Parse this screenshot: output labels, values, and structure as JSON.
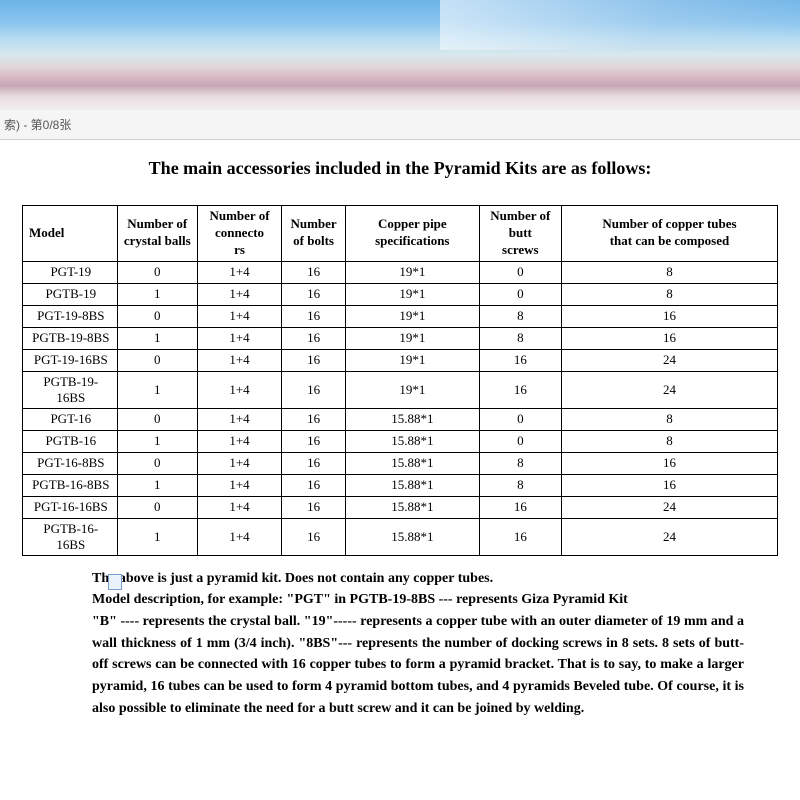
{
  "toolbar_text": "索) - 第0/8张",
  "title": "The main accessories included in the Pyramid Kits are as follows:",
  "table": {
    "columns": [
      "Model",
      "Number of crystal balls",
      "Number of connectors",
      "Number of bolts",
      "Copper pipe specifications",
      "Number of butt screws",
      "Number of copper tubes that can be composed"
    ],
    "rows": [
      [
        "PGT-19",
        "0",
        "1+4",
        "16",
        "19*1",
        "0",
        "8"
      ],
      [
        "PGTB-19",
        "1",
        "1+4",
        "16",
        "19*1",
        "0",
        "8"
      ],
      [
        "PGT-19-8BS",
        "0",
        "1+4",
        "16",
        "19*1",
        "8",
        "16"
      ],
      [
        "PGTB-19-8BS",
        "1",
        "1+4",
        "16",
        "19*1",
        "8",
        "16"
      ],
      [
        "PGT-19-16BS",
        "0",
        "1+4",
        "16",
        "19*1",
        "16",
        "24"
      ],
      [
        "PGTB-19-16BS",
        "1",
        "1+4",
        "16",
        "19*1",
        "16",
        "24"
      ],
      [
        "PGT-16",
        "0",
        "1+4",
        "16",
        "15.88*1",
        "0",
        "8"
      ],
      [
        "PGTB-16",
        "1",
        "1+4",
        "16",
        "15.88*1",
        "0",
        "8"
      ],
      [
        "PGT-16-8BS",
        "0",
        "1+4",
        "16",
        "15.88*1",
        "8",
        "16"
      ],
      [
        "PGTB-16-8BS",
        "1",
        "1+4",
        "16",
        "15.88*1",
        "8",
        "16"
      ],
      [
        "PGT-16-16BS",
        "0",
        "1+4",
        "16",
        "15.88*1",
        "16",
        "24"
      ],
      [
        "PGTB-16-16BS",
        "1",
        "1+4",
        "16",
        "15.88*1",
        "16",
        "24"
      ]
    ]
  },
  "description": [
    "The above is just a pyramid kit. Does not contain any copper tubes.",
    "Model description, for example: \"PGT\" in PGTB-19-8BS --- represents Giza Pyramid Kit",
    "\"B\" ---- represents the crystal ball. \"19\"----- represents a copper tube with an outer diameter of 19 mm and a wall thickness of 1 mm (3/4 inch). \"8BS\"--- represents the number of docking screws in 8 sets. 8 sets of butt-off screws can be connected with 16 copper tubes to form a pyramid bracket. That is to say, to make a larger pyramid, 16 tubes can be used to form 4 pyramid bottom tubes, and 4 pyramids Beveled tube. Of course, it is also possible to eliminate the need for a butt screw and it can be joined by welding."
  ],
  "col_widths": [
    "92px",
    "78px",
    "82px",
    "62px",
    "130px",
    "80px",
    "210px"
  ]
}
